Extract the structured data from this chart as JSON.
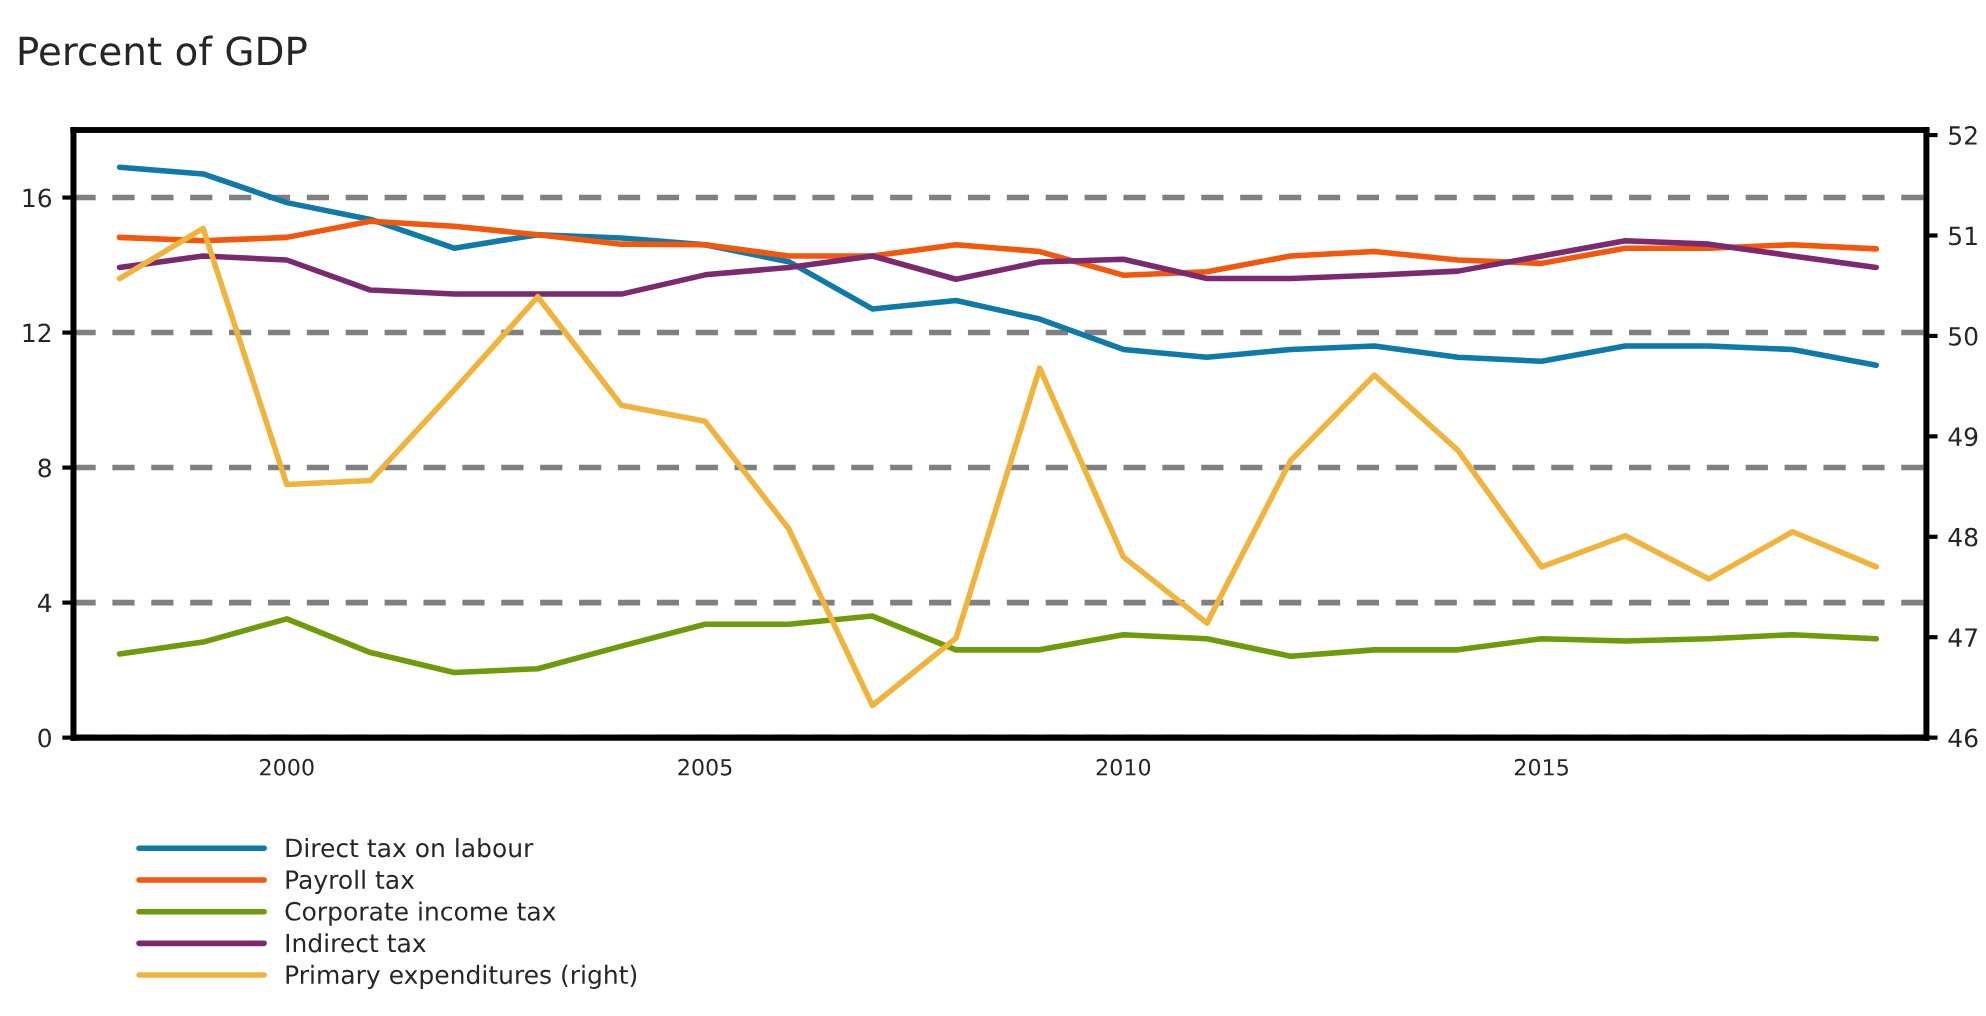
{
  "chart_data": {
    "type": "line",
    "title": "Percent of GDP",
    "x": [
      1998,
      1999,
      2000,
      2001,
      2002,
      2003,
      2004,
      2005,
      2006,
      2007,
      2008,
      2009,
      2010,
      2011,
      2012,
      2013,
      2014,
      2015,
      2016,
      2017,
      2018,
      2019
    ],
    "series": [
      {
        "name": "Direct tax on labour",
        "color": "#0e7aa8",
        "values": [
          16.9,
          16.7,
          15.85,
          15.35,
          14.5,
          14.9,
          14.8,
          14.6,
          14.1,
          12.7,
          12.95,
          12.4,
          11.5,
          11.27,
          11.5,
          11.6,
          11.27,
          11.15,
          11.6,
          11.6,
          11.5,
          11.03
        ]
      },
      {
        "name": "Payroll tax",
        "color": "#f2570c",
        "values": [
          14.82,
          14.72,
          14.82,
          15.3,
          15.15,
          14.9,
          14.62,
          14.6,
          14.27,
          14.27,
          14.6,
          14.4,
          13.7,
          13.8,
          14.27,
          14.4,
          14.15,
          14.05,
          14.5,
          14.5,
          14.6,
          14.48
        ]
      },
      {
        "name": "Corporate income tax",
        "color": "#6f9a0a",
        "values": [
          2.48,
          2.83,
          3.52,
          2.52,
          1.93,
          2.04,
          2.71,
          3.36,
          3.36,
          3.6,
          2.6,
          2.6,
          3.05,
          2.93,
          2.41,
          2.6,
          2.6,
          2.93,
          2.86,
          2.93,
          3.05,
          2.93
        ]
      },
      {
        "name": "Indirect tax",
        "color": "#7b2a6f",
        "values": [
          13.93,
          14.27,
          14.15,
          13.26,
          13.14,
          13.14,
          13.14,
          13.71,
          13.93,
          14.27,
          13.58,
          14.09,
          14.17,
          13.6,
          13.6,
          13.7,
          13.82,
          14.27,
          14.72,
          14.62,
          14.27,
          13.93
        ]
      },
      {
        "name": "Primary expenditures (right)",
        "color": "#f0b43c",
        "axis": "y2",
        "values": [
          50.57,
          51.07,
          48.52,
          48.56,
          49.46,
          50.39,
          49.31,
          49.15,
          48.08,
          46.32,
          46.99,
          49.68,
          47.8,
          47.14,
          48.76,
          49.61,
          48.86,
          47.7,
          48.01,
          47.58,
          48.05,
          47.7
        ]
      }
    ],
    "xlim": [
      1997.45,
      2019.6
    ],
    "xticks": [
      2000,
      2005,
      2010,
      2015
    ],
    "ylim": [
      0,
      18
    ],
    "yticks": [
      0,
      4,
      8,
      12,
      16
    ],
    "y2lim": [
      46,
      52.05
    ],
    "y2ticks": [
      46,
      47,
      48,
      49,
      50,
      51,
      52
    ],
    "grid": "y",
    "legend": "bottom left"
  }
}
